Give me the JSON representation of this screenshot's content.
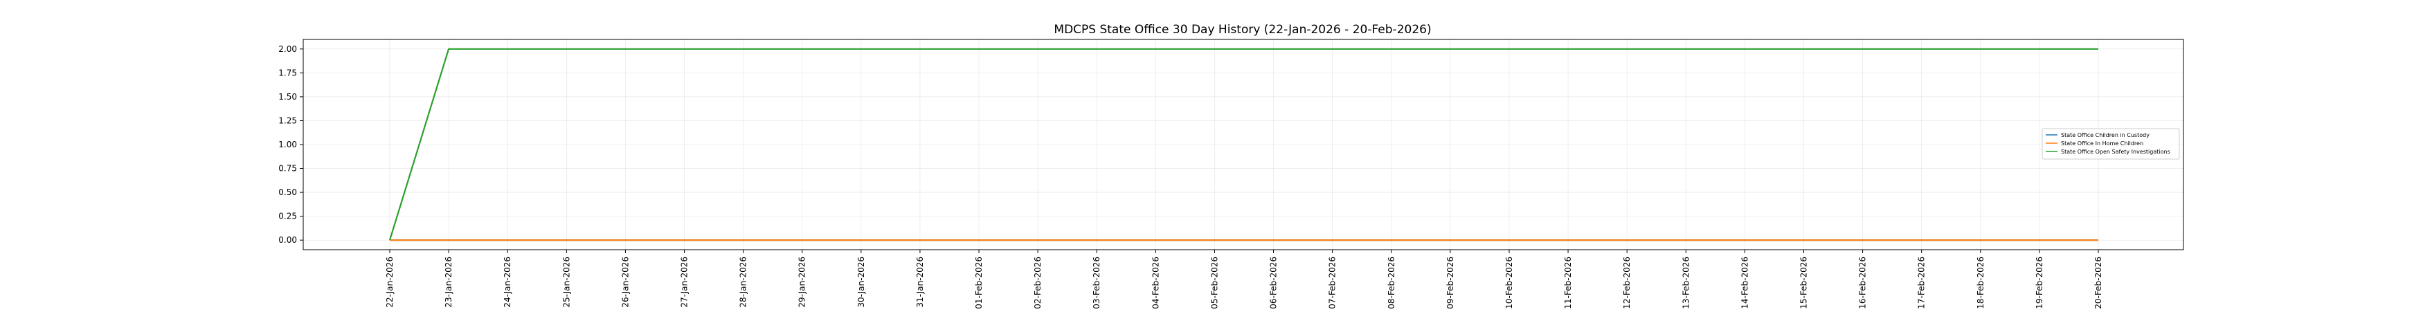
{
  "chart_data": {
    "type": "line",
    "title": "MDCPS State Office 30 Day History (22-Jan-2026 - 20-Feb-2026)",
    "xlabel": "",
    "ylabel": "",
    "x": [
      "22-Jan-2026",
      "23-Jan-2026",
      "24-Jan-2026",
      "25-Jan-2026",
      "26-Jan-2026",
      "27-Jan-2026",
      "28-Jan-2026",
      "29-Jan-2026",
      "30-Jan-2026",
      "31-Jan-2026",
      "01-Feb-2026",
      "02-Feb-2026",
      "03-Feb-2026",
      "04-Feb-2026",
      "05-Feb-2026",
      "06-Feb-2026",
      "07-Feb-2026",
      "08-Feb-2026",
      "09-Feb-2026",
      "10-Feb-2026",
      "11-Feb-2026",
      "12-Feb-2026",
      "13-Feb-2026",
      "14-Feb-2026",
      "15-Feb-2026",
      "16-Feb-2026",
      "17-Feb-2026",
      "18-Feb-2026",
      "19-Feb-2026",
      "20-Feb-2026"
    ],
    "y_ticks": [
      "0.00",
      "0.25",
      "0.50",
      "0.75",
      "1.00",
      "1.25",
      "1.50",
      "1.75",
      "2.00"
    ],
    "ylim": [
      -0.1,
      2.1
    ],
    "grid": true,
    "legend_position": "right",
    "series": [
      {
        "name": "State Office Children in Custody",
        "color": "#1f77b4",
        "values": [
          0,
          0,
          0,
          0,
          0,
          0,
          0,
          0,
          0,
          0,
          0,
          0,
          0,
          0,
          0,
          0,
          0,
          0,
          0,
          0,
          0,
          0,
          0,
          0,
          0,
          0,
          0,
          0,
          0,
          0
        ]
      },
      {
        "name": "State Office In Home Children",
        "color": "#ff7f0e",
        "values": [
          0,
          0,
          0,
          0,
          0,
          0,
          0,
          0,
          0,
          0,
          0,
          0,
          0,
          0,
          0,
          0,
          0,
          0,
          0,
          0,
          0,
          0,
          0,
          0,
          0,
          0,
          0,
          0,
          0,
          0
        ]
      },
      {
        "name": "State Office Open Safety Investigations",
        "color": "#2ca02c",
        "values": [
          0,
          2,
          2,
          2,
          2,
          2,
          2,
          2,
          2,
          2,
          2,
          2,
          2,
          2,
          2,
          2,
          2,
          2,
          2,
          2,
          2,
          2,
          2,
          2,
          2,
          2,
          2,
          2,
          2,
          2
        ]
      }
    ]
  }
}
